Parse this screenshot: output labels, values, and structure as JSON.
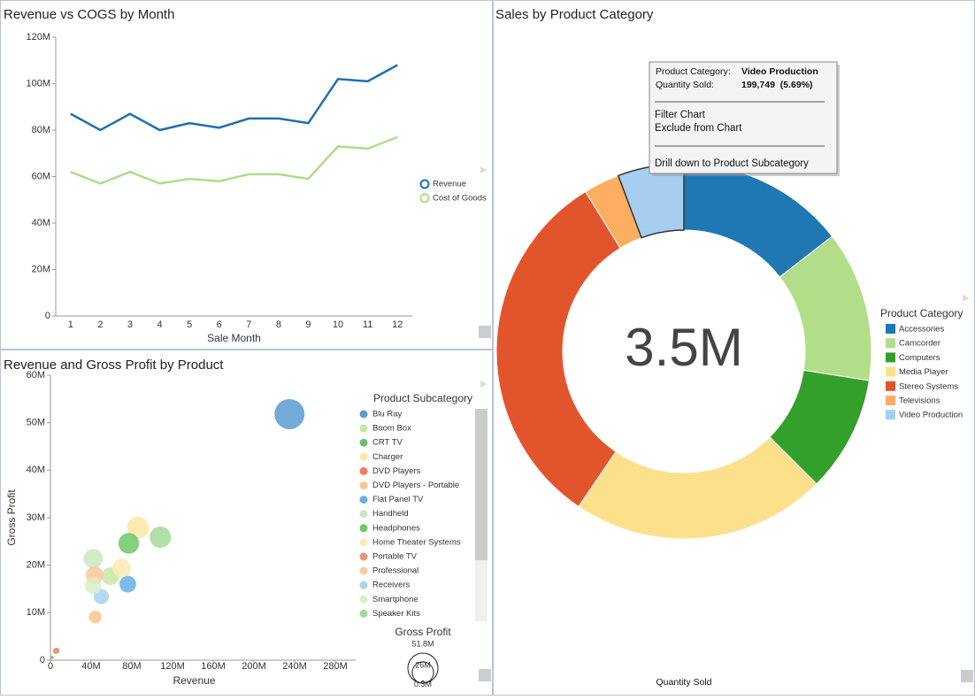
{
  "chart_data": [
    {
      "type": "line",
      "title": "Revenue vs COGS by Month",
      "x_label": "Sale Month",
      "categories": [
        "1",
        "2",
        "3",
        "4",
        "5",
        "6",
        "7",
        "8",
        "9",
        "10",
        "11",
        "12"
      ],
      "series": [
        {
          "name": "Revenue",
          "color": "#1f6fb0",
          "values": [
            87,
            80,
            87,
            80,
            83,
            81,
            85,
            85,
            83,
            102,
            101,
            108
          ]
        },
        {
          "name": "Cost of Goods",
          "color": "#aedd88",
          "values": [
            62,
            57,
            62,
            57,
            59,
            58,
            61,
            61,
            59,
            73,
            72,
            77
          ]
        }
      ],
      "ylim": [
        0,
        120
      ],
      "yticks": [
        0,
        {
          "value": 20,
          "label": "20M"
        },
        {
          "value": 40,
          "label": "40M"
        },
        {
          "value": 60,
          "label": "60M"
        },
        {
          "value": 80,
          "label": "80M"
        },
        {
          "value": 100,
          "label": "100M"
        },
        {
          "value": 120,
          "label": "120M"
        }
      ]
    },
    {
      "type": "pie",
      "title": "Sales by Product Category",
      "center_label": "3.5M",
      "value_label": "Quantity Sold",
      "legend_title": "Product Category",
      "categories": [
        "Accessories",
        "Camcorder",
        "Computers",
        "Media Player",
        "Stereo Systems",
        "Televisions",
        "Video Production"
      ],
      "values": [
        509000,
        456000,
        351000,
        772000,
        1113000,
        109000,
        199749
      ],
      "colors": [
        "#1f77b4",
        "#b3de89",
        "#33a02c",
        "#fde08c",
        "#e2542b",
        "#fdae61",
        "#a6cef0"
      ],
      "tooltip": {
        "rows": [
          [
            "Product Category:",
            "Video Production"
          ],
          [
            "Quantity Sold:",
            "199,749  (5.69%)"
          ]
        ],
        "menu": [
          "Filter Chart",
          "Exclude from Chart",
          "Drill down to Product Subcategory"
        ]
      }
    },
    {
      "type": "scatter",
      "title": "Revenue and Gross Profit by Product",
      "x_label": "Revenue",
      "y_label": "Gross Profit",
      "legend_title": "Product Subcategory",
      "size_title": "Gross Profit",
      "size_legend": [
        {
          "value": 51.8,
          "label": "51.8M"
        },
        {
          "value": 26,
          "label": "26M"
        },
        {
          "value": 0.3,
          "label": "0.3M"
        }
      ],
      "series": [
        {
          "name": "Blu Ray",
          "color": "#5b9bd0",
          "x": [
            235
          ],
          "y": [
            51.8
          ],
          "size": [
            51.8
          ]
        },
        {
          "name": "Boom Box",
          "color": "#c7e7a3",
          "x": [
            59
          ],
          "y": [
            17.7
          ],
          "size": [
            17.7
          ]
        },
        {
          "name": "CRT TV",
          "color": "#6cbf6c",
          "x": [
            1.7
          ],
          "y": [
            0.6
          ],
          "size": [
            0.6
          ]
        },
        {
          "name": "Charger",
          "color": "#fde7a6",
          "x": [
            86
          ],
          "y": [
            27.9
          ],
          "size": [
            27.9
          ]
        },
        {
          "name": "DVD Players",
          "color": "#ee7d5c",
          "x": [
            6
          ],
          "y": [
            2
          ],
          "size": [
            2
          ]
        },
        {
          "name": "DVD Players - Portable",
          "color": "#fdc38c",
          "x": [
            44
          ],
          "y": [
            9.1
          ],
          "size": [
            9.1
          ]
        },
        {
          "name": "Flat Panel TV",
          "color": "#6aaee6",
          "x": [
            76
          ],
          "y": [
            16
          ],
          "size": [
            16
          ]
        },
        {
          "name": "Handheld",
          "color": "#cbe8bf",
          "x": [
            42
          ],
          "y": [
            21.4
          ],
          "size": [
            21.4
          ]
        },
        {
          "name": "Headphones",
          "color": "#6cc86a",
          "x": [
            77
          ],
          "y": [
            24.6
          ],
          "size": [
            24.6
          ]
        },
        {
          "name": "Home Theater Systems",
          "color": "#fde9b5",
          "x": [
            70
          ],
          "y": [
            19.4
          ],
          "size": [
            19.4
          ]
        },
        {
          "name": "Portable TV",
          "color": "#e8957e",
          "x": [
            5
          ],
          "y": [
            1.9
          ],
          "size": [
            1.9
          ]
        },
        {
          "name": "Professional",
          "color": "#fdc89a",
          "x": [
            43.5
          ],
          "y": [
            17.9
          ],
          "size": [
            17.9
          ]
        },
        {
          "name": "Receivers",
          "color": "#a9d2ef",
          "x": [
            50
          ],
          "y": [
            13.4
          ],
          "size": [
            13.4
          ]
        },
        {
          "name": "Smartphone",
          "color": "#d9efc9",
          "x": [
            42
          ],
          "y": [
            15.7
          ],
          "size": [
            15.7
          ]
        },
        {
          "name": "Speaker Kits",
          "color": "#a3d99b",
          "x": [
            108
          ],
          "y": [
            25.9
          ],
          "size": [
            25.9
          ]
        }
      ],
      "xlim": [
        0,
        300
      ],
      "ylim": [
        0,
        60
      ],
      "xticks": [
        0,
        {
          "value": 40,
          "label": "40M"
        },
        {
          "value": 80,
          "label": "80M"
        },
        {
          "value": 120,
          "label": "120M"
        },
        {
          "value": 160,
          "label": "160M"
        },
        {
          "value": 200,
          "label": "200M"
        },
        {
          "value": 240,
          "label": "240M"
        },
        {
          "value": 280,
          "label": "280M"
        }
      ],
      "yticks": [
        0,
        {
          "value": 10,
          "label": "10M"
        },
        {
          "value": 20,
          "label": "20M"
        },
        {
          "value": 30,
          "label": "30M"
        },
        {
          "value": 40,
          "label": "40M"
        },
        {
          "value": 50,
          "label": "50M"
        },
        {
          "value": 60,
          "label": "60M"
        }
      ]
    }
  ]
}
